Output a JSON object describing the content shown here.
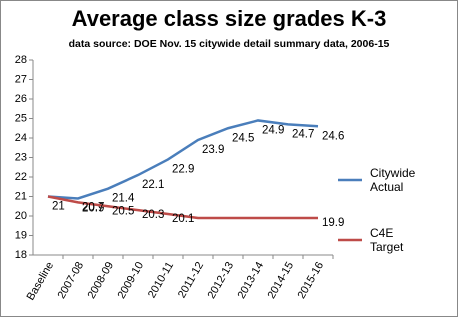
{
  "chart_data": {
    "type": "line",
    "title": "Average class size  grades K-3",
    "subtitle": "data source: DOE Nov. 15 citywide detail  summary data, 2006-15",
    "categories": [
      "Baseline",
      "2007-08",
      "2008-09",
      "2009-10",
      "2010-11",
      "2011-12",
      "2012-13",
      "2013-14",
      "2014-15",
      "2015-16"
    ],
    "series": [
      {
        "name": "Citywide Actual",
        "color": "#4a7ebb",
        "values": [
          21,
          20.9,
          21.4,
          22.1,
          22.9,
          23.9,
          24.5,
          24.9,
          24.7,
          24.6
        ]
      },
      {
        "name": "C4E Target",
        "color": "#be4b48",
        "values": [
          21,
          20.7,
          20.5,
          20.3,
          20.1,
          19.9,
          19.9,
          19.9,
          19.9,
          19.9
        ],
        "value_labels": [
          null,
          "20.7",
          "20.5",
          "20.3",
          "20.1",
          null,
          null,
          null,
          null,
          "19.9"
        ]
      }
    ],
    "ylim": [
      18,
      28
    ],
    "yticks": [
      18,
      19,
      20,
      21,
      22,
      23,
      24,
      25,
      26,
      27,
      28
    ],
    "grid": false,
    "legend": "right"
  }
}
